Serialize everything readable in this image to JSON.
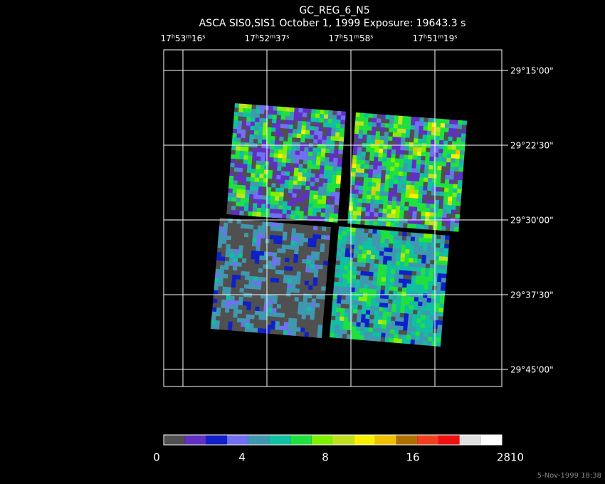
{
  "header": {
    "title": "GC_REG_6_N5",
    "subtitle": "ASCA SIS0,SIS1 October 1, 1999 Exposure: 19643.3 s"
  },
  "ra_labels": [
    "17h53m16s",
    "17h52m37s",
    "17h51m58s",
    "17h51m19s"
  ],
  "dec_labels": [
    "29°15'00\"",
    "29°22'30\"",
    "29°30'00\"",
    "29°37'30\"",
    "29°45'00\""
  ],
  "colorbar": {
    "labels": [
      "0",
      "4",
      "8",
      "16",
      "2810"
    ],
    "colors": [
      "#505050",
      "#6030c0",
      "#1020c8",
      "#7070f0",
      "#4098b0",
      "#10c0a0",
      "#20e040",
      "#80f000",
      "#c0e020",
      "#f8f000",
      "#f0c000",
      "#b07000",
      "#f04020",
      "#f01010",
      "#e0e0e0",
      "#ffffff"
    ]
  },
  "footer": {
    "timestamp": "5-Nov-1999 18:38"
  }
}
